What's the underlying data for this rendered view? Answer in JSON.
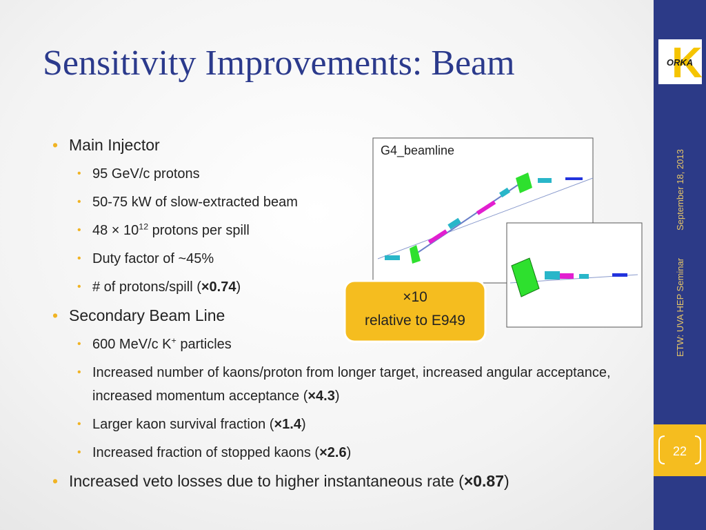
{
  "title": "Sensitivity Improvements: Beam",
  "bullets": [
    {
      "segments": [
        {
          "text": "Main Injector"
        }
      ],
      "items": [
        {
          "segments": [
            {
              "text": "95 GeV/c protons"
            }
          ]
        },
        {
          "segments": [
            {
              "text": "50-75 kW of slow-extracted beam"
            }
          ]
        },
        {
          "segments": [
            {
              "text": "48 × 10"
            },
            {
              "text": "12",
              "style": "sup"
            },
            {
              "text": " protons per spill"
            }
          ]
        },
        {
          "segments": [
            {
              "text": "Duty factor of ~45%"
            }
          ]
        },
        {
          "segments": [
            {
              "text": "# of protons/spill ("
            },
            {
              "text": "×0.74",
              "style": "bold"
            },
            {
              "text": ")"
            }
          ]
        }
      ]
    },
    {
      "segments": [
        {
          "text": "Secondary Beam Line"
        }
      ],
      "items": [
        {
          "segments": [
            {
              "text": "600 MeV/c K"
            },
            {
              "text": "+",
              "style": "sup"
            },
            {
              "text": " particles"
            }
          ]
        },
        {
          "segments": [
            {
              "text": "Increased number of kaons/proton from longer target, increased angular acceptance, increased momentum acceptance ("
            },
            {
              "text": "×4.3",
              "style": "bold"
            },
            {
              "text": ")"
            }
          ]
        },
        {
          "segments": [
            {
              "text": "Larger kaon survival fraction ("
            },
            {
              "text": "×1.4",
              "style": "bold"
            },
            {
              "text": ")"
            }
          ]
        },
        {
          "segments": [
            {
              "text": "Increased fraction of stopped kaons ("
            },
            {
              "text": "×2.6",
              "style": "bold"
            },
            {
              "text": ")"
            }
          ]
        }
      ]
    },
    {
      "segments": [
        {
          "text": "Increased veto losses due to higher instantaneous rate ("
        },
        {
          "text": "×0.87",
          "style": "bold"
        },
        {
          "text": ")"
        }
      ]
    }
  ],
  "figure": {
    "label": "G4_beamline"
  },
  "callout": {
    "line1": "×10",
    "line2": "relative to E949"
  },
  "sidebar": {
    "logo": {
      "letter": "K",
      "text": "ORKA"
    },
    "date": "September 18, 2013",
    "event": "ETW: UVA HEP Seminar",
    "page": "22"
  }
}
